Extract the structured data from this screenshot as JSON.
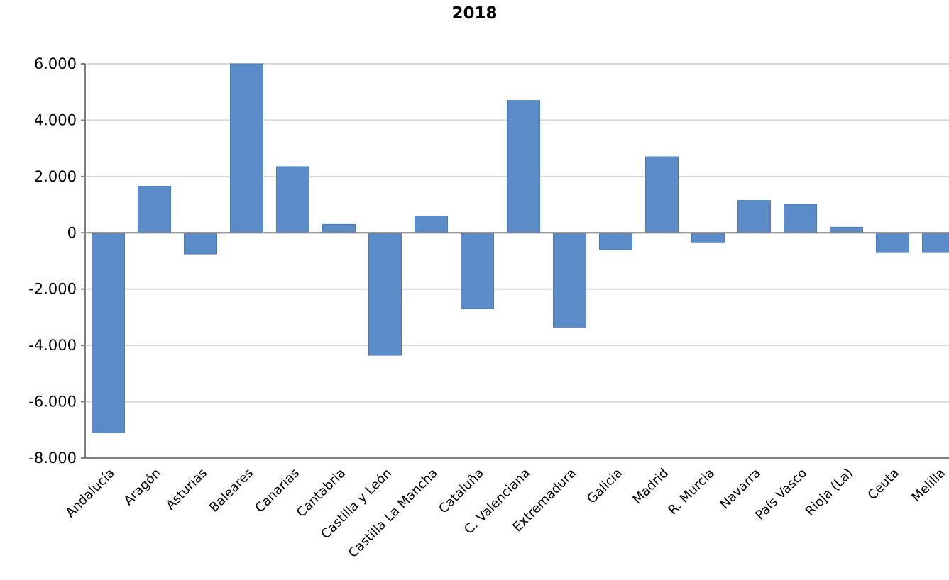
{
  "chart_data": {
    "type": "bar",
    "title": "2018",
    "xlabel": "",
    "ylabel": "",
    "ylim": [
      -8000,
      6000
    ],
    "yticks": [
      -8000,
      -6000,
      -4000,
      -2000,
      0,
      2000,
      4000,
      6000
    ],
    "ytick_labels": [
      "-8.000",
      "-6.000",
      "-4.000",
      "-2.000",
      "0",
      "2.000",
      "4.000",
      "6.000"
    ],
    "grid": true,
    "legend": "none",
    "categories": [
      "Andalucía",
      "Aragón",
      "Asturias",
      "Baleares",
      "Canarias",
      "Cantabria",
      "Castilla y León",
      "Castilla La Mancha",
      "Cataluña",
      "C. Valenciana",
      "Extremadura",
      "Galicia",
      "Madrid",
      "R. Murcia",
      "Navarra",
      "País Vasco",
      "Rioja (La)",
      "Ceuta",
      "Melilla"
    ],
    "values": [
      -7100,
      1650,
      -750,
      6000,
      2350,
      300,
      -4350,
      600,
      -2700,
      4700,
      -3350,
      -600,
      2700,
      -350,
      1150,
      1000,
      200,
      -700,
      -700
    ],
    "colors": {
      "bar": "#5b8cc8",
      "grid": "#d9d9d9",
      "axis": "#808080"
    }
  }
}
